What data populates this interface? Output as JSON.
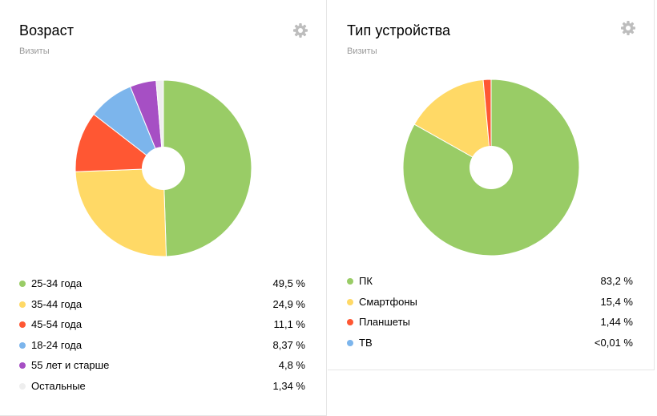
{
  "widgets": [
    {
      "title": "Возраст",
      "subtitle": "Визиты",
      "legend": [
        {
          "label": "25-34 года",
          "value": "49,5 %",
          "color": "#99cc66"
        },
        {
          "label": "35-44 года",
          "value": "24,9 %",
          "color": "#ffd966"
        },
        {
          "label": "45-54 года",
          "value": "11,1 %",
          "color": "#ff5733"
        },
        {
          "label": "18-24 года",
          "value": "8,37 %",
          "color": "#7cb5ec"
        },
        {
          "label": "55 лет и старше",
          "value": "4,8 %",
          "color": "#a64fc4"
        },
        {
          "label": "Остальные",
          "value": "1,34 %",
          "color": "#eeeeee"
        }
      ]
    },
    {
      "title": "Тип устройства",
      "subtitle": "Визиты",
      "legend": [
        {
          "label": "ПК",
          "value": "83,2 %",
          "color": "#99cc66"
        },
        {
          "label": "Смартфоны",
          "value": "15,4 %",
          "color": "#ffd966"
        },
        {
          "label": "Планшеты",
          "value": "1,44 %",
          "color": "#ff5733"
        },
        {
          "label": "ТВ",
          "value": "<0,01 %",
          "color": "#7cb5ec"
        }
      ]
    }
  ],
  "chart_data": [
    {
      "type": "pie",
      "title": "Возраст",
      "subtitle": "Визиты",
      "categories": [
        "25-34 года",
        "35-44 года",
        "45-54 года",
        "18-24 года",
        "55 лет и старше",
        "Остальные"
      ],
      "values": [
        49.5,
        24.9,
        11.1,
        8.37,
        4.8,
        1.34
      ],
      "colors": [
        "#99cc66",
        "#ffd966",
        "#ff5733",
        "#7cb5ec",
        "#a64fc4",
        "#eeeeee"
      ],
      "unit": "%"
    },
    {
      "type": "pie",
      "title": "Тип устройства",
      "subtitle": "Визиты",
      "categories": [
        "ПК",
        "Смартфоны",
        "Планшеты",
        "ТВ"
      ],
      "values": [
        83.2,
        15.4,
        1.44,
        0.005
      ],
      "colors": [
        "#99cc66",
        "#ffd966",
        "#ff5733",
        "#7cb5ec"
      ],
      "unit": "%"
    }
  ]
}
